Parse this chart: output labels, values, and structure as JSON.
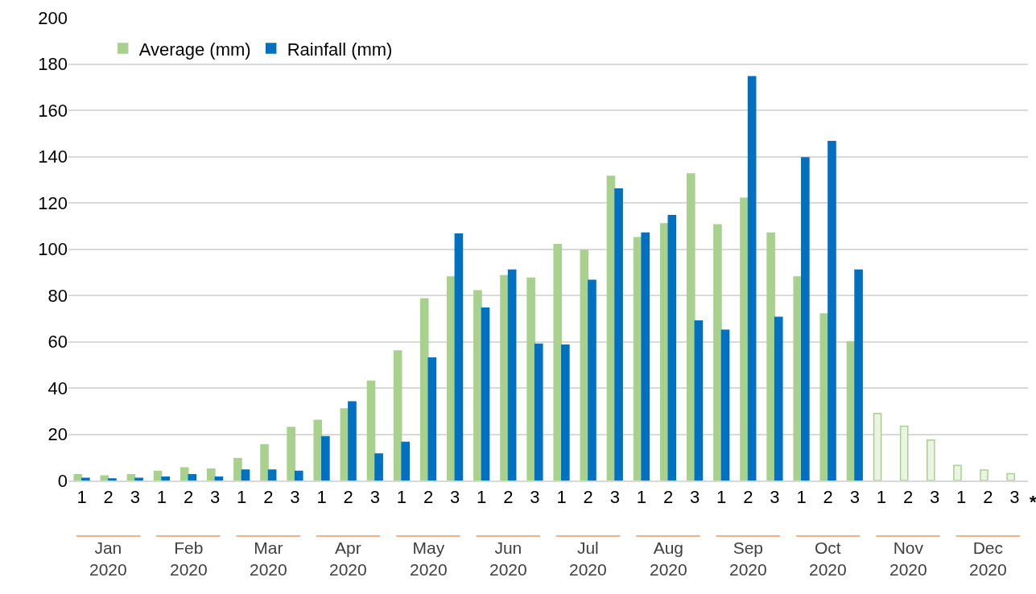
{
  "chart_data": {
    "type": "bar",
    "categories": [
      "1",
      "2",
      "3",
      "1",
      "2",
      "3",
      "1",
      "2",
      "3",
      "1",
      "2",
      "3",
      "1",
      "2",
      "3",
      "1",
      "2",
      "3",
      "1",
      "2",
      "3",
      "1",
      "2",
      "3",
      "1",
      "2",
      "3",
      "1",
      "2",
      "3",
      "1",
      "2",
      "3",
      "1",
      "2",
      "3"
    ],
    "series": [
      {
        "name": "Average (mm)",
        "color": "#a9d18e",
        "colors": [
          "#a9d18e",
          "#a9d18e",
          "#a9d18e",
          "#a9d18e",
          "#a9d18e",
          "#a9d18e",
          "#a9d18e",
          "#a9d18e",
          "#a9d18e",
          "#a9d18e",
          "#a9d18e",
          "#a9d18e",
          "#a9d18e",
          "#a9d18e",
          "#a9d18e",
          "#a9d18e",
          "#a9d18e",
          "#a9d18e",
          "#a9d18e",
          "#a9d18e",
          "#a9d18e",
          "#a9d18e",
          "#a9d18e",
          "#a9d18e",
          "#a9d18e",
          "#a9d18e",
          "#a9d18e",
          "#a9d18e",
          "#a9d18e",
          "#a9d18e",
          "#ebf3e3",
          "#ebf3e3",
          "#ebf3e3",
          "#ebf3e3",
          "#ebf3e3",
          "#ebf3e3"
        ],
        "values": [
          2.5,
          2,
          2.5,
          4,
          5.5,
          5,
          9.5,
          15.5,
          23,
          26,
          31,
          43,
          56,
          78.5,
          88,
          82,
          88.5,
          87.5,
          102,
          99.5,
          131.5,
          105,
          111,
          132.5,
          110.5,
          122,
          107,
          88,
          72,
          60,
          29,
          23.5,
          17.5,
          6.5,
          4.5,
          3
        ]
      },
      {
        "name": "Rainfall (mm)",
        "color": "#0070c0",
        "values": [
          1,
          0.7,
          1,
          1.5,
          2.5,
          1.5,
          4.5,
          4.5,
          4,
          19,
          34,
          11.5,
          16.5,
          53,
          106.5,
          74.5,
          91,
          59,
          58.5,
          86.5,
          126,
          107,
          114.5,
          69,
          65,
          174.5,
          70.5,
          139.5,
          146.5,
          91,
          null,
          null,
          null,
          null,
          null,
          null
        ]
      }
    ],
    "ylim": [
      0,
      200
    ],
    "yticks": [
      0,
      20,
      40,
      60,
      80,
      100,
      120,
      140,
      160,
      180,
      200
    ],
    "grid": "y",
    "legend": "top left",
    "annotations": [
      "Jan\n2020",
      "Feb\n2020",
      "Mar\n2020",
      "Apr\n2020",
      "May\n2020",
      "Jun\n2020",
      "Jul\n2020",
      "Aug\n2020",
      "Sep\n2020",
      "Oct\n2020",
      "Nov\n2020",
      "Dec\n2020",
      "*"
    ]
  }
}
